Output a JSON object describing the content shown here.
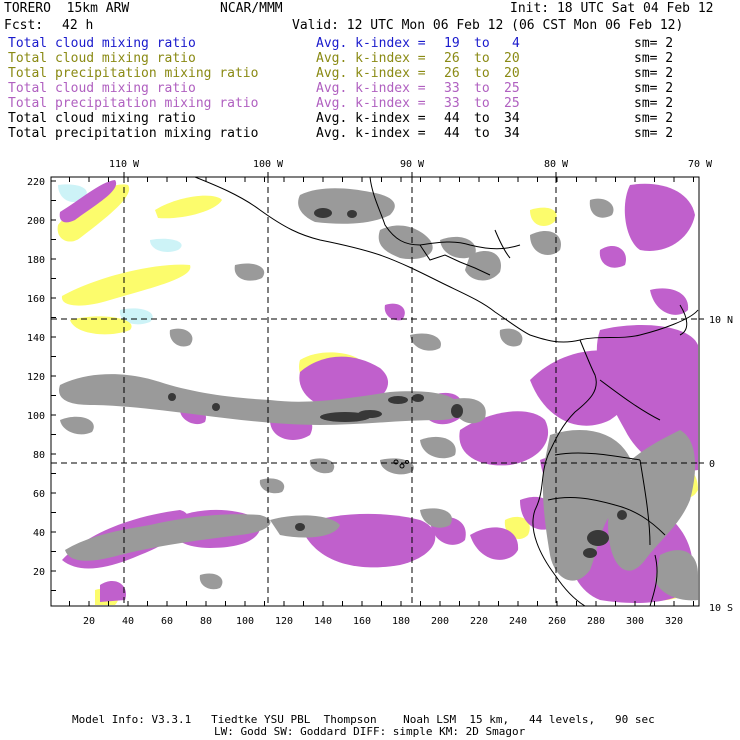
{
  "header": {
    "model": "TORERO  15km ARW",
    "org": "NCAR/MMM",
    "init": "Init: 18 UTC Sat 04 Feb 12",
    "fcst_label": "Fcst:",
    "fcst_value": "42 h",
    "valid": "Valid: 12 UTC Mon 06 Feb 12 (06 CST Mon 06 Feb 12)"
  },
  "legend": [
    {
      "field": "Total cloud mixing ratio",
      "kindex": "Avg. k-index =",
      "hi": "19",
      "to": "to",
      "lo": "4",
      "sm": "sm= 2",
      "color": "#1a1acc"
    },
    {
      "field": "Total cloud mixing ratio",
      "kindex": "Avg. k-index =",
      "hi": "26",
      "to": "to",
      "lo": "20",
      "sm": "sm= 2",
      "color": "#8a8a14"
    },
    {
      "field": "Total precipitation mixing ratio",
      "kindex": "Avg. k-index =",
      "hi": "26",
      "to": "to",
      "lo": "20",
      "sm": "sm= 2",
      "color": "#8a8a14"
    },
    {
      "field": "Total cloud mixing ratio",
      "kindex": "Avg. k-index =",
      "hi": "33",
      "to": "to",
      "lo": "25",
      "sm": "sm= 2",
      "color": "#b060c0"
    },
    {
      "field": "Total precipitation mixing ratio",
      "kindex": "Avg. k-index =",
      "hi": "33",
      "to": "to",
      "lo": "25",
      "sm": "sm= 2",
      "color": "#b060c0"
    },
    {
      "field": "Total cloud mixing ratio",
      "kindex": "Avg. k-index =",
      "hi": "44",
      "to": "to",
      "lo": "34",
      "sm": "sm= 2",
      "color": "#000000"
    },
    {
      "field": "Total precipitation mixing ratio",
      "kindex": "Avg. k-index =",
      "hi": "44",
      "to": "to",
      "lo": "34",
      "sm": "sm= 2",
      "color": "#000000"
    }
  ],
  "map": {
    "top_ticks": [
      "110 W",
      "100 W",
      "90 W",
      "80 W",
      "70 W"
    ],
    "right_ticks": [
      "10 N",
      "0",
      "10 S"
    ],
    "left_ticks": [
      "220",
      "200",
      "180",
      "160",
      "140",
      "120",
      "100",
      "80",
      "60",
      "40",
      "20"
    ],
    "bottom_ticks": [
      "20",
      "40",
      "60",
      "80",
      "100",
      "120",
      "140",
      "160",
      "180",
      "200",
      "220",
      "240",
      "260",
      "280",
      "300",
      "320"
    ],
    "colors": {
      "cyan": "#cdf3f7",
      "yellow": "#fcfc6c",
      "purple": "#c060cc",
      "gray": "#9a9a9a",
      "dark": "#383838",
      "coast": "#000000"
    }
  },
  "footer": {
    "line1": "Model Info: V3.3.1   Tiedtke YSU PBL  Thompson    Noah LSM  15 km,   44 levels,   90 sec",
    "line2": "LW: Godd SW: Goddard DIFF: simple KM: 2D Smagor"
  }
}
